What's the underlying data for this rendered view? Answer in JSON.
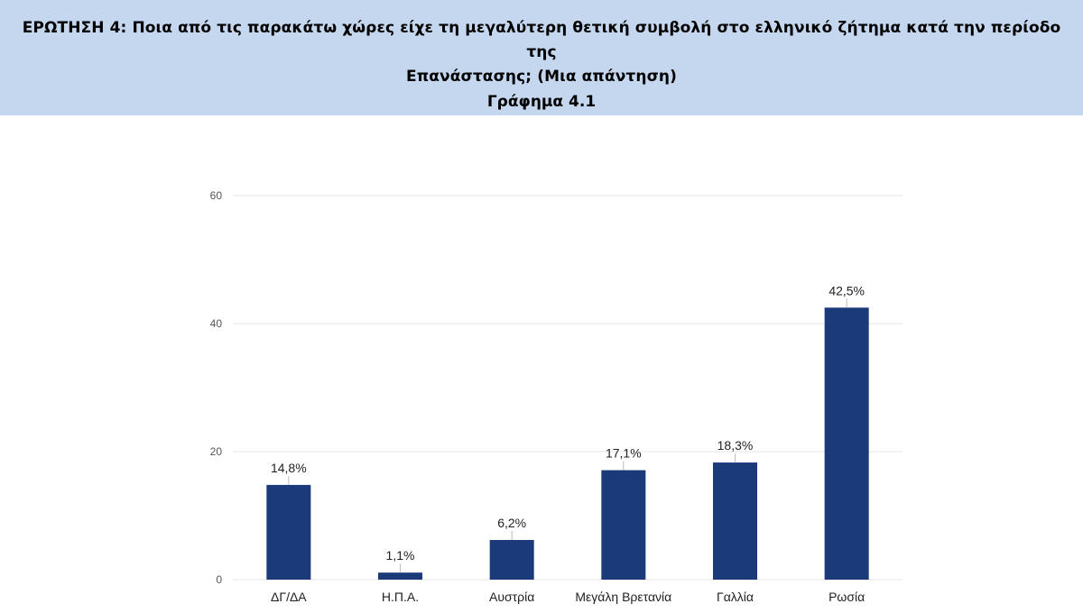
{
  "header": {
    "question_line1": "ΕΡΩΤΗΣΗ 4: Ποια από τις παρακάτω χώρες είχε τη μεγαλύτερη θετική συμβολή στο ελληνικό ζήτημα κατά την περίοδο της",
    "question_line2": "Επανάστασης; (Μια απάντηση)",
    "subtitle": "Γράφημα 4.1"
  },
  "colors": {
    "header_bg": "#c5d7ef",
    "bar": "#1a3a7a",
    "grid": "#e6e6e6",
    "axis_text": "#555555"
  },
  "chart_data": {
    "type": "bar",
    "categories": [
      "ΔΓ/ΔΑ",
      "Η.Π.Α.",
      "Αυστρία",
      "Μεγάλη Βρετανία",
      "Γαλλία",
      "Ρωσία"
    ],
    "values": [
      14.8,
      1.1,
      6.2,
      17.1,
      18.3,
      42.5
    ],
    "data_labels": [
      "14,8%",
      "1,1%",
      "6,2%",
      "17,1%",
      "18,3%",
      "42,5%"
    ],
    "y_ticks": [
      "0",
      "20",
      "40",
      "60"
    ],
    "ylim": [
      0,
      60
    ],
    "grid": true,
    "legend": false,
    "xlabel": "",
    "ylabel": ""
  }
}
